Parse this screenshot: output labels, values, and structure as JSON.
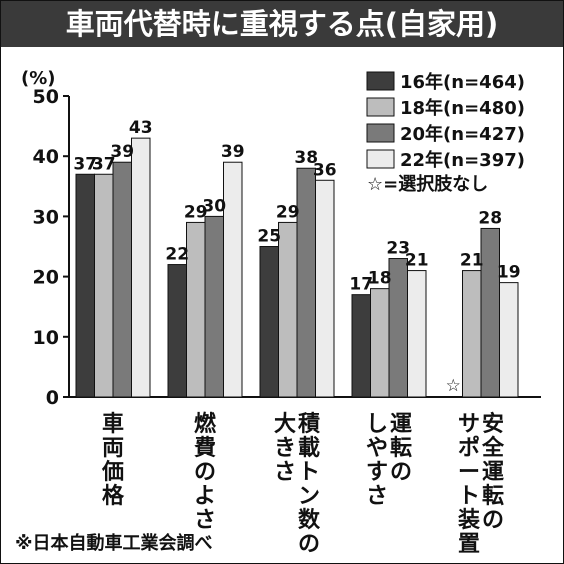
{
  "header": {
    "title": "車両代替時に重視する点(自家用)"
  },
  "source": "※日本自動車工業会調べ",
  "chart_data": {
    "type": "bar",
    "title": "車両代替時に重視する点(自家用)",
    "ylabel": "(%)",
    "xlabel": "",
    "ylim": [
      0,
      50
    ],
    "yticks": [
      0,
      10,
      20,
      30,
      40,
      50
    ],
    "grid": false,
    "legend_position": "top-right",
    "categories": [
      [
        "車",
        "両",
        "価",
        "格"
      ],
      [
        "燃",
        "費",
        "の",
        "よ",
        "さ"
      ],
      [
        "積",
        "載",
        "ト",
        "ン",
        "数",
        "の",
        "大",
        "き",
        "さ"
      ],
      [
        "運",
        "転",
        "の",
        "し",
        "や",
        "す",
        "さ"
      ],
      [
        "安",
        "全",
        "運",
        "転",
        "の",
        "サ",
        "ポ",
        "ー",
        "ト",
        "装",
        "置"
      ]
    ],
    "category_columns": [
      [
        [
          "車",
          "両",
          "価",
          "格"
        ]
      ],
      [
        [
          "燃",
          "費",
          "の",
          "よ",
          "さ"
        ]
      ],
      [
        [
          "積",
          "載",
          "ト",
          "ン",
          "数",
          "の"
        ],
        [
          "大",
          "き",
          "さ"
        ]
      ],
      [
        [
          "運",
          "転",
          "の"
        ],
        [
          "し",
          "や",
          "す",
          "さ"
        ]
      ],
      [
        [
          "安",
          "全",
          "運",
          "転",
          "の"
        ],
        [
          "サ",
          "ポ",
          "ー",
          "ト",
          "装",
          "置"
        ]
      ]
    ],
    "series": [
      {
        "name": "16年(n=464)",
        "color": "#3d3d3d",
        "values": [
          37,
          22,
          25,
          17,
          null
        ],
        "labels": [
          "37",
          "22",
          "25",
          "17",
          ""
        ]
      },
      {
        "name": "18年(n=480)",
        "color": "#bdbdbd",
        "values": [
          37,
          29,
          29,
          18,
          21
        ],
        "labels": [
          "37",
          "29",
          "29",
          "18",
          "21"
        ]
      },
      {
        "name": "20年(n=427)",
        "color": "#7a7a7a",
        "values": [
          39,
          30,
          38,
          23,
          28
        ],
        "labels": [
          "39",
          "30",
          "38",
          "23",
          "28"
        ]
      },
      {
        "name": "22年(n=397)",
        "color": "#ececec",
        "values": [
          43,
          39,
          36,
          21,
          19
        ],
        "labels": [
          "43",
          "39",
          "36",
          "21",
          "19"
        ]
      }
    ],
    "legend_note": "☆=選択肢なし",
    "missing_marker": "☆"
  }
}
